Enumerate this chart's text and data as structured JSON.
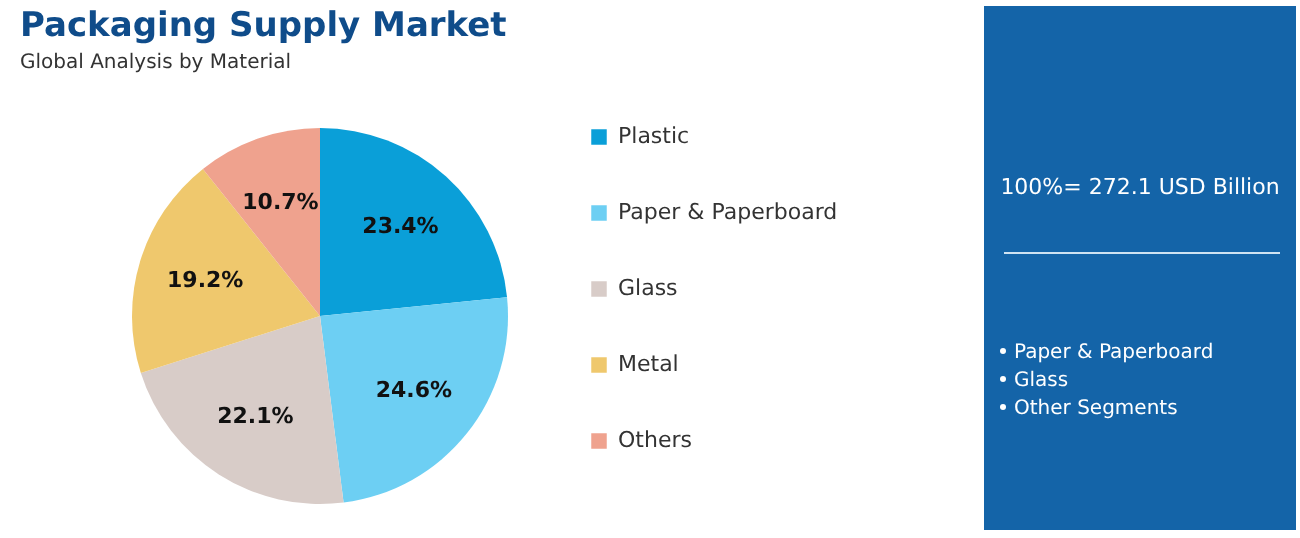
{
  "chart_data": {
    "type": "pie",
    "title": "Packaging Supply Market",
    "subtitle": "Global Analysis by Material",
    "categories": [
      "Plastic",
      "Paper & Paperboard",
      "Glass",
      "Metal",
      "Others"
    ],
    "values": [
      23.4,
      24.6,
      22.1,
      19.2,
      10.7
    ],
    "colors": [
      "#0a9fd8",
      "#6dcff3",
      "#d8ccc8",
      "#efc86d",
      "#efa28e"
    ],
    "value_labels": [
      "23.4%",
      "24.6%",
      "22.1%",
      "19.2%",
      "10.7%"
    ],
    "legend": "right",
    "annotations": [
      "100%= 272.1 USD Billion",
      "Paper & Paperboard",
      "Glass",
      "Other Segments"
    ]
  }
}
